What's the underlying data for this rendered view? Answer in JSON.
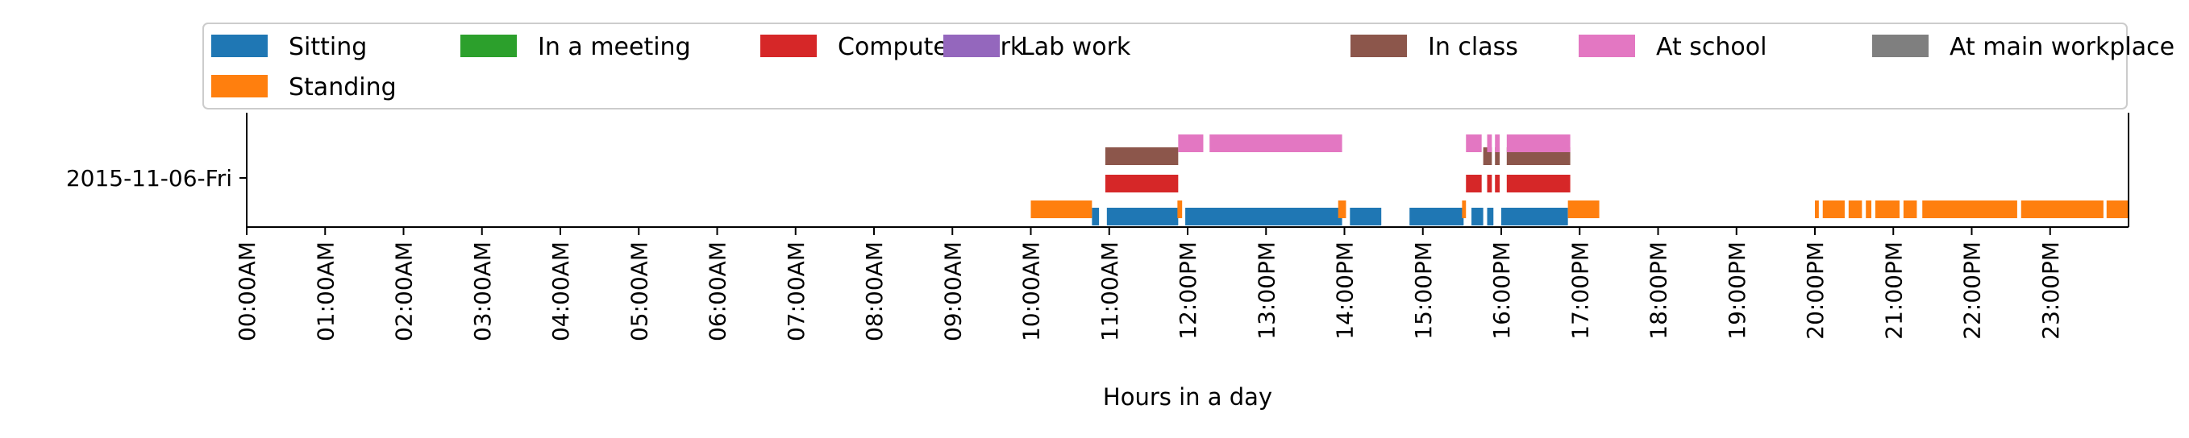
{
  "chart_data": {
    "type": "timeline",
    "title": "",
    "xlabel": "Hours in a day",
    "ylabel": "",
    "xlim": [
      0,
      24
    ],
    "x_ticks": [
      {
        "hour": 0,
        "label": "00:00AM"
      },
      {
        "hour": 1,
        "label": "01:00AM"
      },
      {
        "hour": 2,
        "label": "02:00AM"
      },
      {
        "hour": 3,
        "label": "03:00AM"
      },
      {
        "hour": 4,
        "label": "04:00AM"
      },
      {
        "hour": 5,
        "label": "05:00AM"
      },
      {
        "hour": 6,
        "label": "06:00AM"
      },
      {
        "hour": 7,
        "label": "07:00AM"
      },
      {
        "hour": 8,
        "label": "08:00AM"
      },
      {
        "hour": 9,
        "label": "09:00AM"
      },
      {
        "hour": 10,
        "label": "10:00AM"
      },
      {
        "hour": 11,
        "label": "11:00AM"
      },
      {
        "hour": 12,
        "label": "12:00PM"
      },
      {
        "hour": 13,
        "label": "13:00PM"
      },
      {
        "hour": 14,
        "label": "14:00PM"
      },
      {
        "hour": 15,
        "label": "15:00PM"
      },
      {
        "hour": 16,
        "label": "16:00PM"
      },
      {
        "hour": 17,
        "label": "17:00PM"
      },
      {
        "hour": 18,
        "label": "18:00PM"
      },
      {
        "hour": 19,
        "label": "19:00PM"
      },
      {
        "hour": 20,
        "label": "20:00PM"
      },
      {
        "hour": 21,
        "label": "21:00PM"
      },
      {
        "hour": 22,
        "label": "22:00PM"
      },
      {
        "hour": 23,
        "label": "23:00PM"
      }
    ],
    "y_tick_label": "2015-11-06-Fri",
    "legend_position": "top",
    "grid": false,
    "series": [
      {
        "name": "Sitting",
        "color": "#1f77b4",
        "intervals": [
          [
            10.78,
            10.87
          ],
          [
            10.97,
            11.88
          ],
          [
            11.97,
            13.97
          ],
          [
            14.07,
            14.47
          ],
          [
            14.83,
            15.52
          ],
          [
            15.62,
            15.77
          ],
          [
            15.82,
            15.9
          ],
          [
            16.0,
            16.85
          ]
        ]
      },
      {
        "name": "Standing",
        "color": "#ff7f0e",
        "intervals": [
          [
            10.0,
            10.78
          ],
          [
            11.87,
            11.93
          ],
          [
            13.92,
            14.02
          ],
          [
            15.5,
            15.55
          ],
          [
            16.85,
            17.25
          ],
          [
            20.0,
            20.05
          ],
          [
            20.1,
            20.38
          ],
          [
            20.43,
            20.6
          ],
          [
            20.65,
            20.72
          ],
          [
            20.77,
            21.08
          ],
          [
            21.13,
            21.3
          ],
          [
            21.37,
            22.58
          ],
          [
            22.63,
            23.68
          ],
          [
            23.72,
            24.0
          ]
        ]
      },
      {
        "name": "In a meeting",
        "color": "#2ca02c",
        "intervals": []
      },
      {
        "name": "Computer work",
        "color": "#d62728",
        "intervals": [
          [
            10.95,
            11.88
          ],
          [
            15.55,
            15.75
          ],
          [
            15.82,
            15.88
          ],
          [
            15.92,
            15.98
          ],
          [
            16.07,
            16.88
          ]
        ]
      },
      {
        "name": "Lab work",
        "color": "#9467bd",
        "intervals": []
      },
      {
        "name": "In class",
        "color": "#8c564b",
        "intervals": [
          [
            10.95,
            11.88
          ],
          [
            15.77,
            15.88
          ],
          [
            15.92,
            15.98
          ],
          [
            16.07,
            16.88
          ]
        ]
      },
      {
        "name": "At school",
        "color": "#e377c2",
        "intervals": [
          [
            11.88,
            12.2
          ],
          [
            12.28,
            13.97
          ],
          [
            15.55,
            15.75
          ],
          [
            15.82,
            15.88
          ],
          [
            15.92,
            15.98
          ],
          [
            16.07,
            16.88
          ]
        ]
      },
      {
        "name": "At main workplace",
        "color": "#7f7f7f",
        "intervals": []
      }
    ]
  }
}
